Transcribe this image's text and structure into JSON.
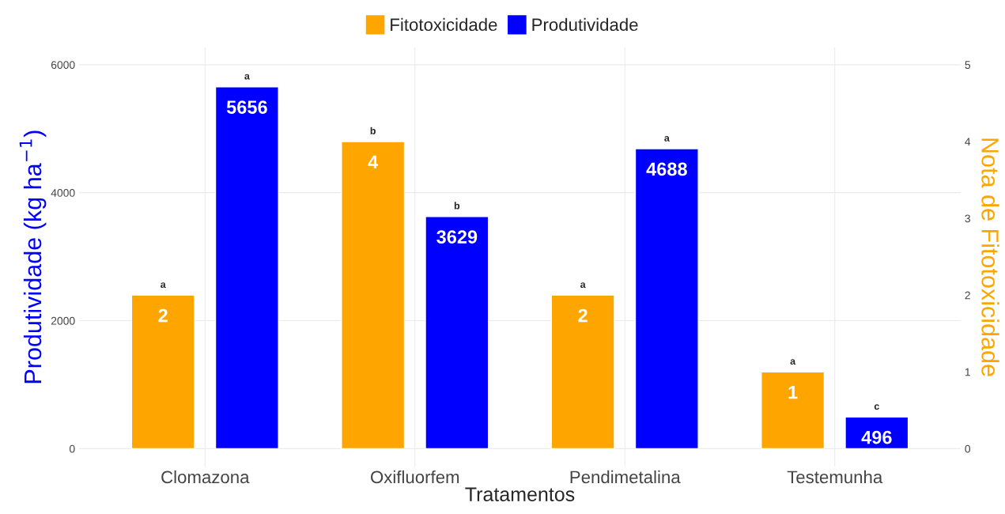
{
  "chart_data": {
    "type": "bar",
    "xlabel": "Tratamentos",
    "ylabel": "Produtividade (kg ha$^{−1}$)",
    "y2label": "Nota de Fitotoxicidade",
    "categories": [
      "Clomazona",
      "Oxifluorfem",
      "Pendimetalina",
      "Testemunha"
    ],
    "series": [
      {
        "name": "Fitotoxicidade",
        "color": "#ffa500",
        "values": [
          2,
          4,
          2,
          1
        ],
        "axis": "y2"
      },
      {
        "name": "Produtividade",
        "color": "#0000ff",
        "values": [
          5656,
          3629,
          4688,
          496
        ]
      }
    ],
    "ylim": [
      -280,
      6270
    ],
    "yticks": [
      0,
      2000,
      4000,
      6000
    ],
    "y2lim": [
      -0.233,
      5.225
    ],
    "y2ticks": [
      0,
      1,
      2,
      3,
      4,
      5
    ],
    "data_labels": true,
    "grid": true,
    "legend": "top",
    "annotations": [
      "a",
      "a",
      "b",
      "b",
      "a",
      "a",
      "a",
      "c"
    ]
  }
}
